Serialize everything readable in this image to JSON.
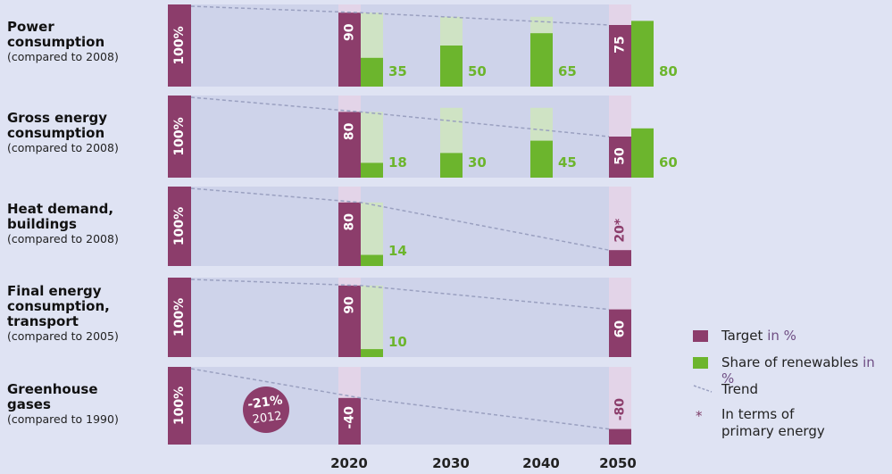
{
  "chart_data": {
    "type": "bar",
    "x_years": [
      "2020",
      "2030",
      "2040",
      "2050"
    ],
    "colors": {
      "target": "#8c3d6b",
      "target_shadow": "#e3d4e8",
      "renewables": "#6cb52d",
      "renewables_shadow": "#cfe3c4",
      "panel": "#ced3ea",
      "trend": "#9aa0c0"
    },
    "rows": [
      {
        "title": "Power\nconsumption",
        "subtitle": "(compared to 2008)",
        "baseline_label": "100%",
        "targets": [
          {
            "year": "2020",
            "value": 90,
            "label": "90"
          },
          {
            "year": "2050",
            "value": 75,
            "label": "75"
          }
        ],
        "renewables": [
          {
            "year": "2020",
            "value": 35,
            "label": "35"
          },
          {
            "year": "2030",
            "value": 50,
            "label": "50"
          },
          {
            "year": "2040",
            "value": 65,
            "label": "65"
          },
          {
            "year": "2050",
            "value": 80,
            "label": "80"
          }
        ]
      },
      {
        "title": "Gross energy\nconsumption",
        "subtitle": "(compared to 2008)",
        "baseline_label": "100%",
        "targets": [
          {
            "year": "2020",
            "value": 80,
            "label": "80"
          },
          {
            "year": "2050",
            "value": 50,
            "label": "50"
          }
        ],
        "renewables": [
          {
            "year": "2020",
            "value": 18,
            "label": "18"
          },
          {
            "year": "2030",
            "value": 30,
            "label": "30"
          },
          {
            "year": "2040",
            "value": 45,
            "label": "45"
          },
          {
            "year": "2050",
            "value": 60,
            "label": "60"
          }
        ]
      },
      {
        "title": "Heat demand,\nbuildings",
        "subtitle": "(compared to 2008)",
        "baseline_label": "100%",
        "targets": [
          {
            "year": "2020",
            "value": 80,
            "label": "80"
          },
          {
            "year": "2050",
            "value": 20,
            "label": "20*"
          }
        ],
        "renewables": [
          {
            "year": "2020",
            "value": 14,
            "label": "14"
          }
        ]
      },
      {
        "title": "Final energy\nconsumption,\ntransport",
        "subtitle": "(compared to 2005)",
        "baseline_label": "100%",
        "targets": [
          {
            "year": "2020",
            "value": 90,
            "label": "90"
          },
          {
            "year": "2050",
            "value": 60,
            "label": "60"
          }
        ],
        "renewables": [
          {
            "year": "2020",
            "value": 10,
            "label": "10"
          }
        ]
      },
      {
        "title": "Greenhouse\ngases",
        "subtitle": "(compared to 1990)",
        "baseline_label": "100%",
        "targets": [
          {
            "year": "2020",
            "value": 60,
            "label": "-40"
          },
          {
            "year": "2050",
            "value": 20,
            "label": "-80"
          }
        ],
        "renewables": [],
        "badge": {
          "value": "-21%",
          "year": "2012"
        }
      }
    ],
    "legend": {
      "target": {
        "label": "Target",
        "unit": "in %"
      },
      "renewables": {
        "label": "Share of renewables",
        "unit": "in %"
      },
      "trend": {
        "label": "Trend"
      },
      "note": {
        "symbol": "*",
        "label": "In terms of\nprimary energy"
      }
    }
  }
}
